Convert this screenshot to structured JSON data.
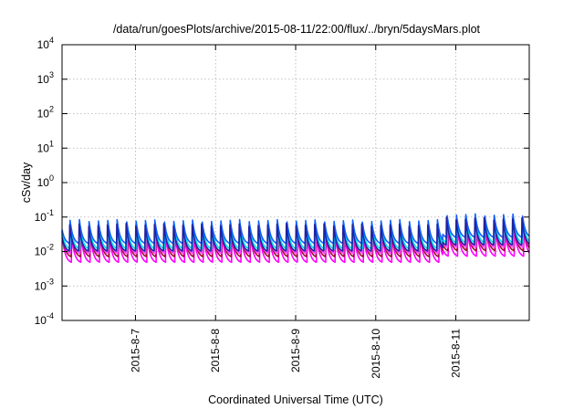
{
  "chart_data": {
    "type": "line",
    "title": "/data/run/goesPlots/archive/2015-08-11/22:00/flux/../bryn/5daysMars.plot",
    "xlabel": "Coordinated Universal Time (UTC)",
    "ylabel": "cSv/day",
    "yscale": "log",
    "ylim": [
      0.0001,
      10000
    ],
    "xlim": [
      "2015-08-06 02:00",
      "2015-08-11 22:00"
    ],
    "grid": true,
    "y_ticks": [
      {
        "value": 0.0001,
        "base": "10",
        "exp": "-4"
      },
      {
        "value": 0.001,
        "base": "10",
        "exp": "-3"
      },
      {
        "value": 0.01,
        "base": "10",
        "exp": "-2"
      },
      {
        "value": 0.1,
        "base": "10",
        "exp": "-1"
      },
      {
        "value": 1,
        "base": "10",
        "exp": "0"
      },
      {
        "value": 10,
        "base": "10",
        "exp": "1"
      },
      {
        "value": 100,
        "base": "10",
        "exp": "2"
      },
      {
        "value": 1000,
        "base": "10",
        "exp": "3"
      },
      {
        "value": 10000,
        "base": "10",
        "exp": "4"
      }
    ],
    "x_ticks": [
      {
        "value": "2015-08-07 00:00",
        "label": "2015-8-7"
      },
      {
        "value": "2015-08-08 00:00",
        "label": "2015-8-8"
      },
      {
        "value": "2015-08-09 00:00",
        "label": "2015-8-9"
      },
      {
        "value": "2015-08-10 00:00",
        "label": "2015-8-10"
      },
      {
        "value": "2015-08-11 00:00",
        "label": "2015-8-11"
      }
    ],
    "series": [
      {
        "color": "#ff00ff",
        "peak": 0.032,
        "trough": 0.0045
      },
      {
        "color": "#a01030",
        "peak": 0.05,
        "trough": 0.0065
      },
      {
        "color": "#ff40ff",
        "peak": 0.058,
        "trough": 0.008
      },
      {
        "color": "#00e0e0",
        "peak": 0.07,
        "trough": 0.011
      },
      {
        "color": "#1060ff",
        "peak": 0.085,
        "trough": 0.016
      },
      {
        "color": "#2020a0",
        "peak": 0.065,
        "trough": 0.0095
      }
    ],
    "cycles_per_day": 8.5,
    "late_event": {
      "start": "2015-08-10 20:00",
      "factor": 1.5
    }
  }
}
